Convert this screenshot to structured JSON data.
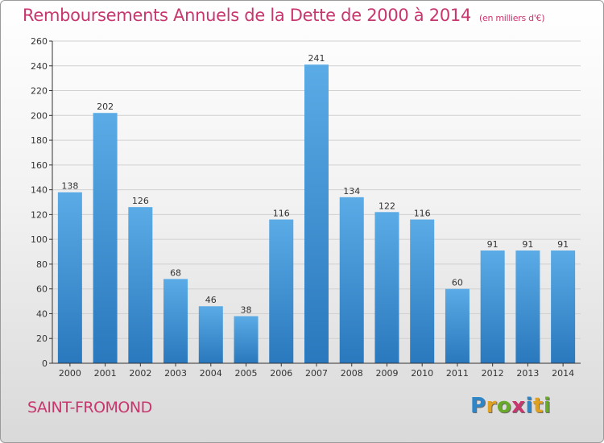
{
  "title": "Remboursements Annuels de la Dette de 2000 à 2014",
  "subtitle": "(en milliers d'€)",
  "town": "SAINT-FROMOND",
  "logo": {
    "letters": [
      "P",
      "r",
      "o",
      "x",
      "i",
      "t",
      "i"
    ],
    "colors": [
      "#2e86c8",
      "#e0a020",
      "#6aaa2a",
      "#c8366e",
      "#2e86c8",
      "#e0a020",
      "#6aaa2a"
    ]
  },
  "colors": {
    "title": "#c8366e",
    "bar_light": "#5aabe6",
    "bar_dark": "#2a78bd",
    "axis": "#333333",
    "grid": "#d0d0d0"
  },
  "chart_data": {
    "type": "bar",
    "categories": [
      "2000",
      "2001",
      "2002",
      "2003",
      "2004",
      "2005",
      "2006",
      "2007",
      "2008",
      "2009",
      "2010",
      "2011",
      "2012",
      "2013",
      "2014"
    ],
    "values": [
      138,
      202,
      126,
      68,
      46,
      38,
      116,
      241,
      134,
      122,
      116,
      60,
      91,
      91,
      91
    ],
    "ylim": [
      0,
      260
    ],
    "yticks": [
      0,
      20,
      40,
      60,
      80,
      100,
      120,
      140,
      160,
      180,
      200,
      220,
      240,
      260
    ],
    "grid": true,
    "legend": "none"
  }
}
